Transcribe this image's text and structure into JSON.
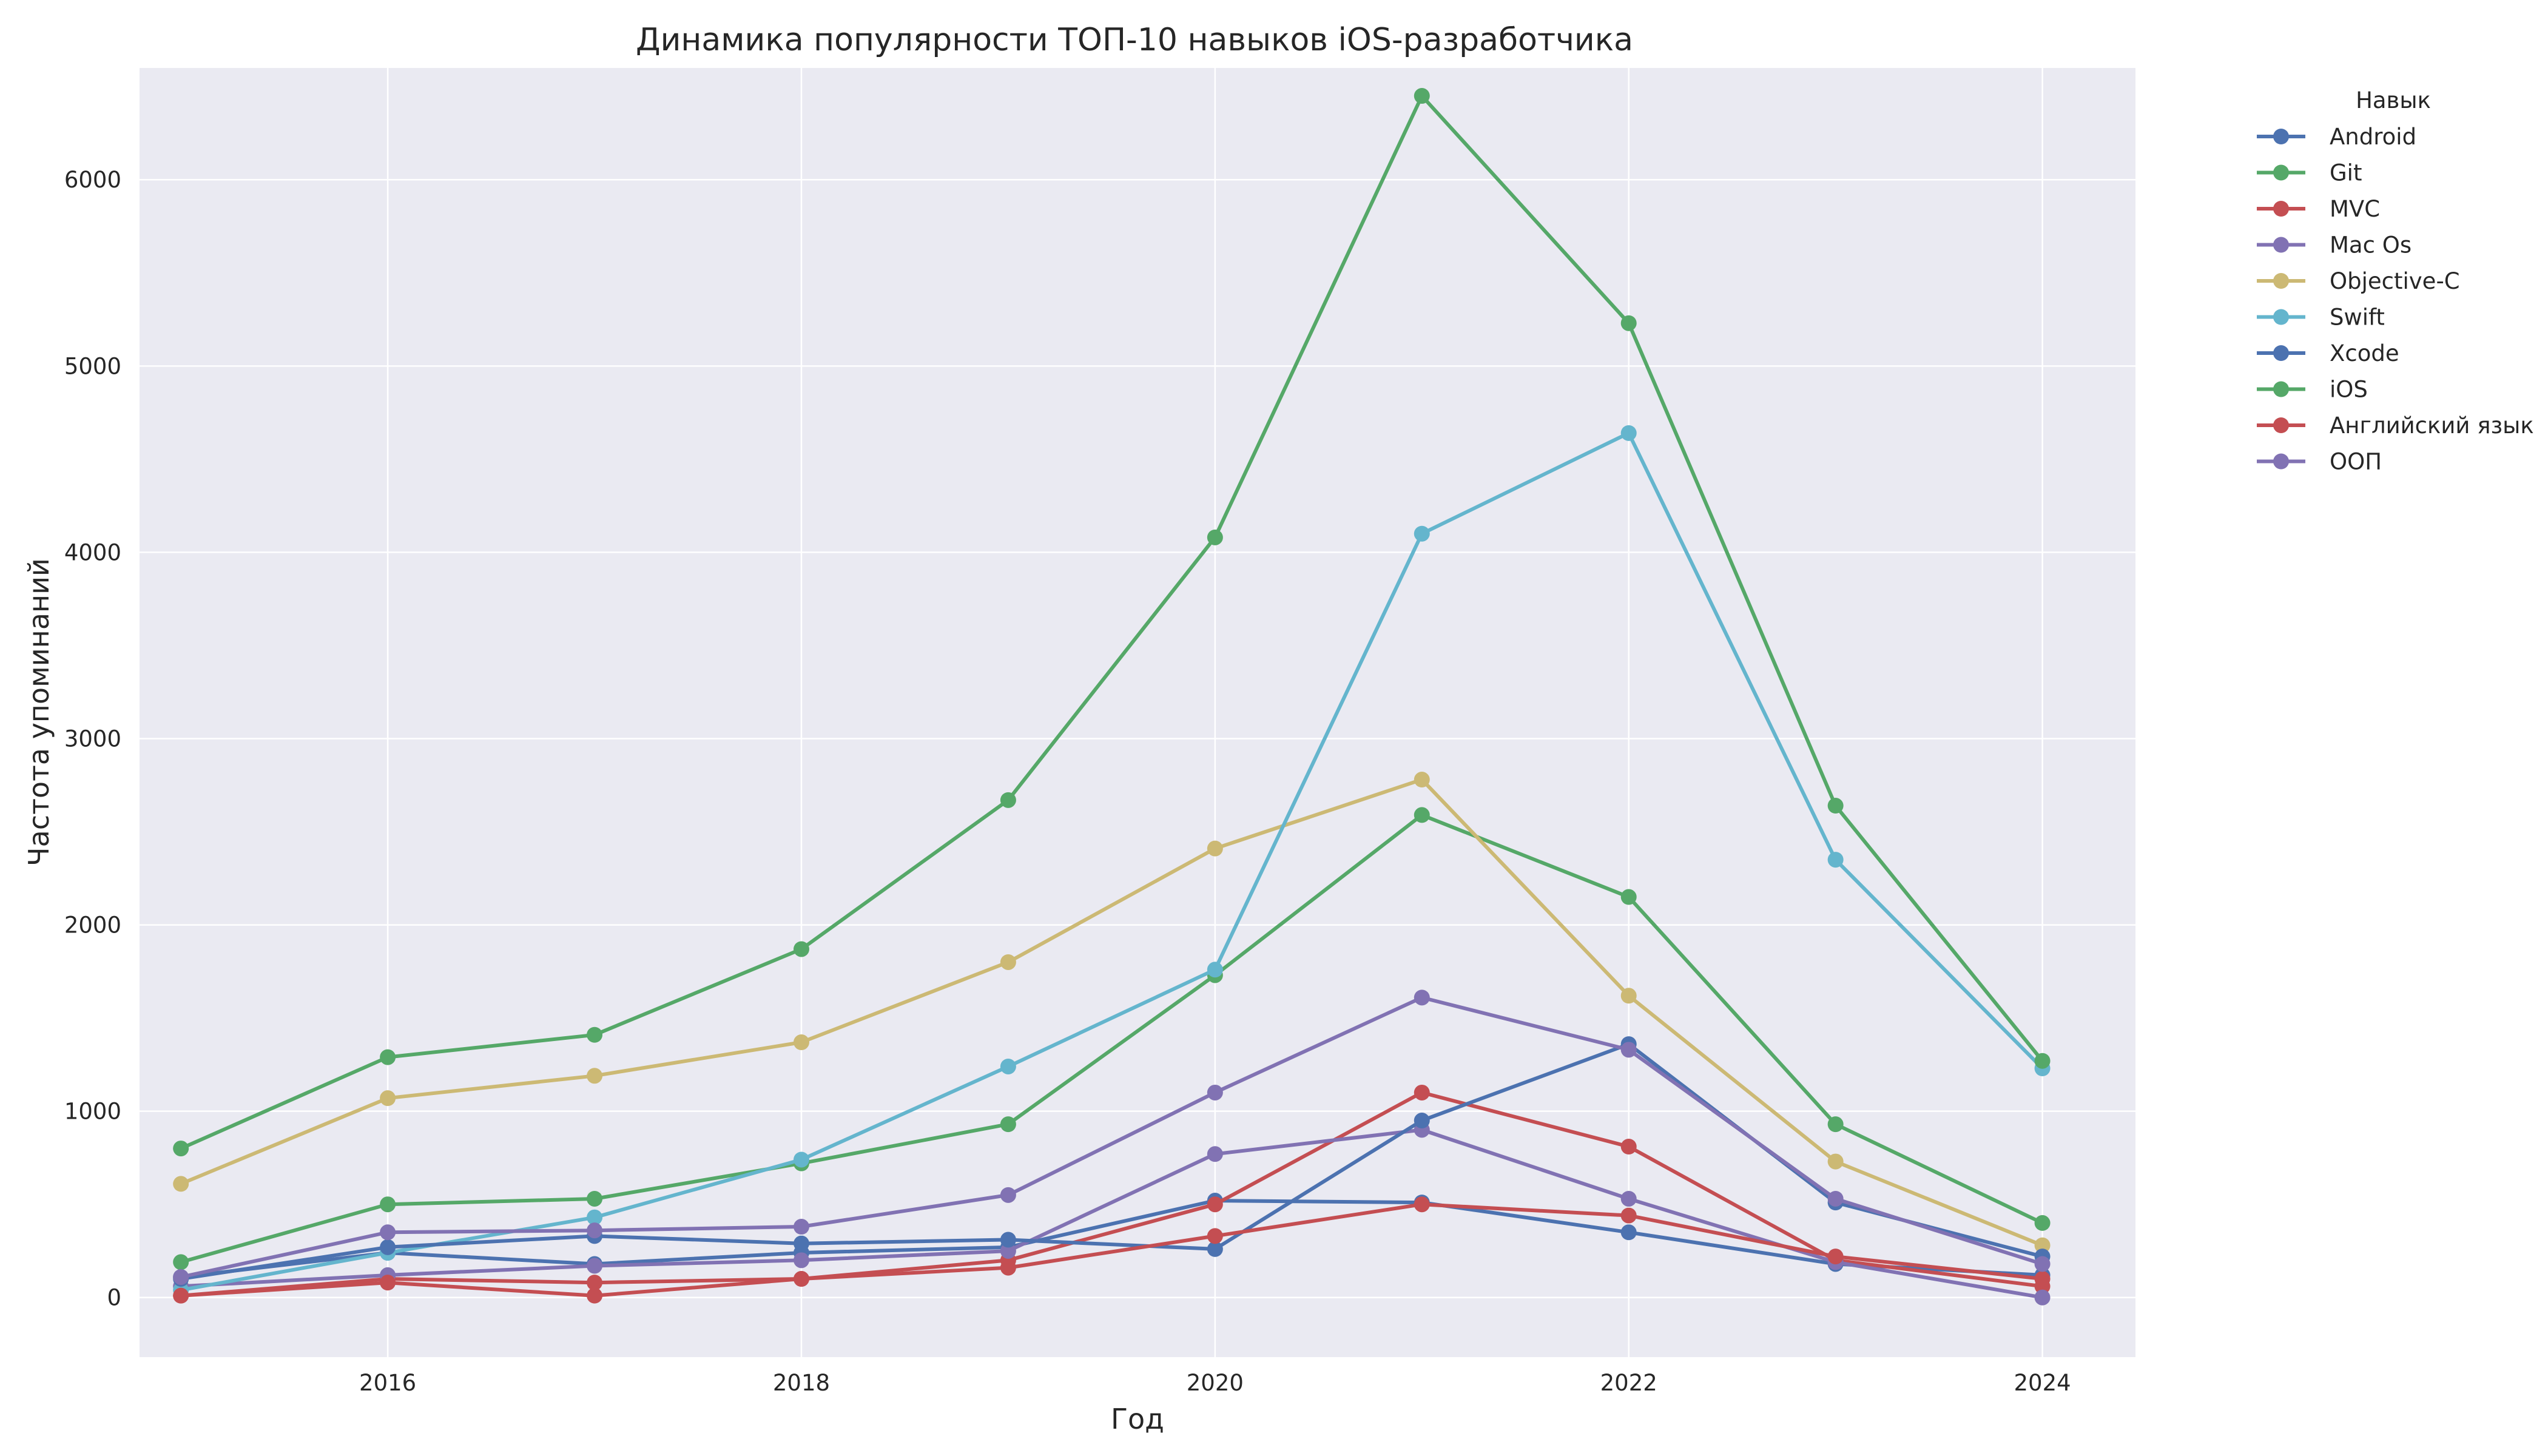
{
  "chart_data": {
    "type": "line",
    "title": "Динамика популярности ТОП-10 навыков iOS-разработчика",
    "xlabel": "Год",
    "ylabel": "Частота упоминаний",
    "xlim": [
      2014.8,
      2024.45
    ],
    "ylim": [
      -320,
      6600
    ],
    "xticks": [
      2016,
      2018,
      2020,
      2022,
      2024
    ],
    "yticks": [
      0,
      1000,
      2000,
      3000,
      4000,
      5000,
      6000
    ],
    "grid": true,
    "legend_title": "Навык",
    "legend_position": "outside-right",
    "x": [
      2015,
      2016,
      2017,
      2018,
      2019,
      2020,
      2021,
      2022,
      2023,
      2024
    ],
    "series": [
      {
        "name": "Android",
        "color": "#4c72b0",
        "values": [
          110,
          240,
          180,
          240,
          270,
          520,
          510,
          350,
          180,
          120
        ]
      },
      {
        "name": "Git",
        "color": "#55a868",
        "values": [
          190,
          500,
          530,
          720,
          930,
          1730,
          2590,
          2150,
          930,
          400
        ]
      },
      {
        "name": "MVC",
        "color": "#c44e52",
        "values": [
          10,
          100,
          80,
          100,
          200,
          500,
          1100,
          810,
          200,
          60
        ]
      },
      {
        "name": "Mac Os",
        "color": "#8172b3",
        "values": [
          60,
          120,
          170,
          200,
          250,
          770,
          900,
          530,
          190,
          0
        ]
      },
      {
        "name": "Objective-C",
        "color": "#ccb974",
        "values": [
          610,
          1070,
          1190,
          1370,
          1800,
          2410,
          2780,
          1620,
          730,
          280
        ]
      },
      {
        "name": "Swift",
        "color": "#64b5cd",
        "values": [
          40,
          240,
          430,
          740,
          1240,
          1760,
          4100,
          4640,
          2350,
          1230
        ]
      },
      {
        "name": "Xcode",
        "color": "#4c72b0",
        "values": [
          100,
          270,
          330,
          290,
          310,
          260,
          950,
          1360,
          510,
          220
        ]
      },
      {
        "name": "iOS",
        "color": "#55a868",
        "values": [
          800,
          1290,
          1410,
          1870,
          2670,
          4080,
          6450,
          5230,
          2640,
          1270
        ]
      },
      {
        "name": "Английский язык",
        "color": "#c44e52",
        "values": [
          10,
          80,
          10,
          100,
          160,
          330,
          500,
          440,
          220,
          100
        ]
      },
      {
        "name": "ООП",
        "color": "#8172b3",
        "values": [
          110,
          350,
          360,
          380,
          550,
          1100,
          1610,
          1330,
          530,
          180
        ]
      }
    ]
  }
}
